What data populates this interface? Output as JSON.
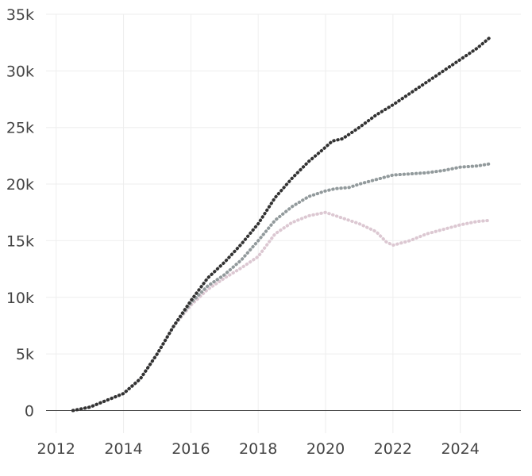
{
  "chart_data": {
    "type": "scatter",
    "title": "",
    "xlabel": "",
    "ylabel": "",
    "xlim": [
      2011.7,
      2025.8
    ],
    "ylim": [
      -2000,
      35000
    ],
    "grid": true,
    "legend": "none",
    "x_ticks": [
      {
        "value": 2012,
        "label": "2012"
      },
      {
        "value": 2014,
        "label": "2014"
      },
      {
        "value": 2016,
        "label": "2016"
      },
      {
        "value": 2018,
        "label": "2018"
      },
      {
        "value": 2020,
        "label": "2020"
      },
      {
        "value": 2022,
        "label": "2022"
      },
      {
        "value": 2024,
        "label": "2024"
      }
    ],
    "y_ticks": [
      {
        "value": 0,
        "label": "0"
      },
      {
        "value": 5000,
        "label": "5k"
      },
      {
        "value": 10000,
        "label": "10k"
      },
      {
        "value": 15000,
        "label": "15k"
      },
      {
        "value": 20000,
        "label": "20k"
      },
      {
        "value": 25000,
        "label": "25k"
      },
      {
        "value": 30000,
        "label": "30k"
      },
      {
        "value": 35000,
        "label": "35k"
      }
    ],
    "series": [
      {
        "color": "#333333",
        "x": [
          2012.5,
          2013.0,
          2013.5,
          2014.0,
          2014.5,
          2015.0,
          2015.5,
          2016.0,
          2016.5,
          2017.0,
          2017.5,
          2018.0,
          2018.5,
          2019.0,
          2019.5,
          2019.9,
          2020.2,
          2020.5,
          2021.0,
          2021.5,
          2022.0,
          2022.5,
          2023.0,
          2023.5,
          2024.0,
          2024.5,
          2024.9
        ],
        "y": [
          0,
          300,
          900,
          1500,
          2800,
          5000,
          7500,
          9700,
          11700,
          13100,
          14700,
          16500,
          18800,
          20500,
          22000,
          23000,
          23800,
          24000,
          25000,
          26100,
          27000,
          28000,
          29000,
          30000,
          31000,
          32000,
          33000
        ]
      },
      {
        "color": "#929a9c",
        "x": [
          2012.5,
          2013.0,
          2013.5,
          2014.0,
          2014.5,
          2015.0,
          2015.5,
          2016.0,
          2016.5,
          2017.0,
          2017.5,
          2018.0,
          2018.5,
          2019.0,
          2019.5,
          2020.0,
          2020.3,
          2020.7,
          2021.0,
          2021.5,
          2022.0,
          2022.5,
          2023.0,
          2023.5,
          2024.0,
          2024.5,
          2024.9
        ],
        "y": [
          0,
          300,
          900,
          1500,
          2800,
          5000,
          7500,
          9500,
          11000,
          12000,
          13300,
          15000,
          16800,
          18000,
          18900,
          19400,
          19600,
          19700,
          20000,
          20400,
          20800,
          20900,
          21000,
          21200,
          21500,
          21600,
          21800
        ]
      },
      {
        "color": "#dcc8d2",
        "x": [
          2012.5,
          2013.0,
          2013.5,
          2014.0,
          2014.5,
          2015.0,
          2015.5,
          2016.0,
          2016.5,
          2017.0,
          2017.5,
          2018.0,
          2018.5,
          2019.0,
          2019.5,
          2020.0,
          2020.5,
          2021.0,
          2021.5,
          2021.8,
          2022.0,
          2022.5,
          2023.0,
          2023.5,
          2024.0,
          2024.5,
          2024.9
        ],
        "y": [
          0,
          300,
          900,
          1500,
          2800,
          5000,
          7500,
          9300,
          10700,
          11700,
          12600,
          13600,
          15600,
          16600,
          17200,
          17500,
          17000,
          16500,
          15800,
          14900,
          14600,
          15000,
          15600,
          16000,
          16400,
          16700,
          16800
        ]
      }
    ]
  }
}
